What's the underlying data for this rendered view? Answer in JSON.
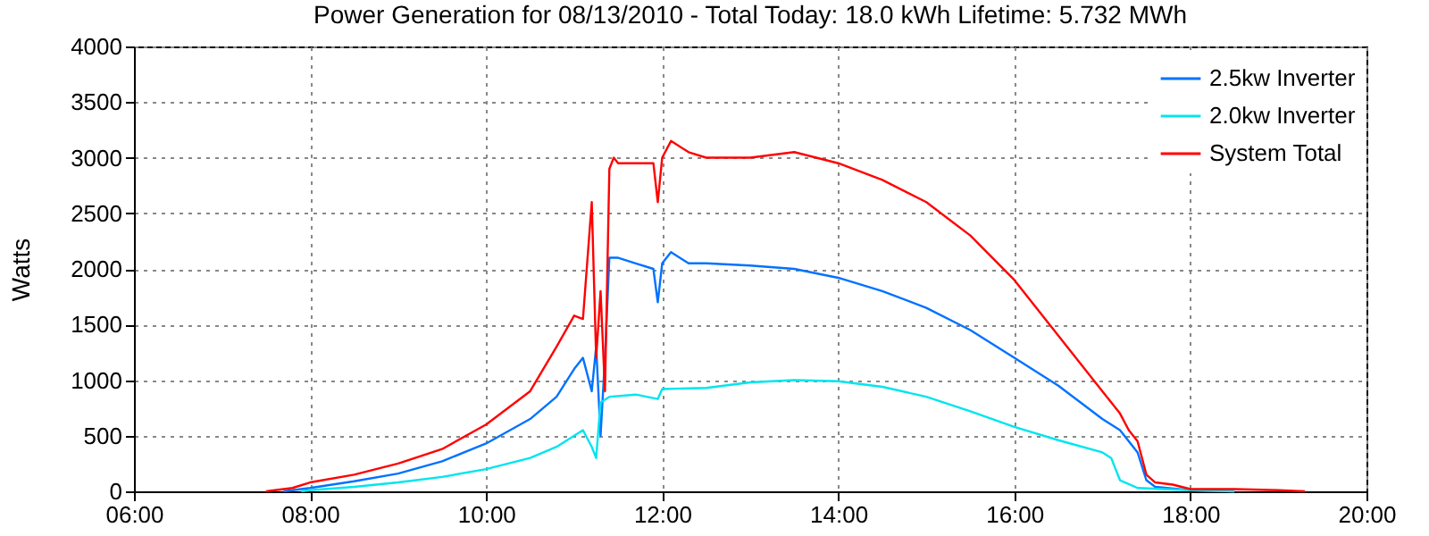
{
  "chart_data": {
    "type": "line",
    "title": "Power Generation for 08/13/2010 - Total Today: 18.0 kWh   Lifetime: 5.732 MWh",
    "ylabel": "Watts",
    "xlim": [
      6,
      20
    ],
    "xticks": [
      {
        "value": 6,
        "label": "06:00"
      },
      {
        "value": 8,
        "label": "08:00"
      },
      {
        "value": 10,
        "label": "10:00"
      },
      {
        "value": 12,
        "label": "12:00"
      },
      {
        "value": 14,
        "label": "14:00"
      },
      {
        "value": 16,
        "label": "16:00"
      },
      {
        "value": 18,
        "label": "18:00"
      },
      {
        "value": 20,
        "label": "20:00"
      }
    ],
    "ylim": [
      0,
      4000
    ],
    "yticks": [
      0,
      500,
      1000,
      1500,
      2000,
      2500,
      3000,
      3500,
      4000
    ],
    "grid": true,
    "legend": "top right",
    "marker": "none",
    "line_style": "solid",
    "series": [
      {
        "name": "2.5kw Inverter",
        "color": "#0072ff",
        "x": [
          7.7,
          8.0,
          8.5,
          9.0,
          9.5,
          10.0,
          10.5,
          10.8,
          11.0,
          11.1,
          11.2,
          11.25,
          11.3,
          11.35,
          11.4,
          11.5,
          11.7,
          11.9,
          11.95,
          12.0,
          12.1,
          12.3,
          12.5,
          13.0,
          13.5,
          14.0,
          14.5,
          15.0,
          15.5,
          16.0,
          16.5,
          17.0,
          17.2,
          17.4,
          17.5,
          17.6,
          18.0,
          18.5
        ],
        "values": [
          0,
          30,
          90,
          160,
          270,
          430,
          650,
          850,
          1100,
          1200,
          900,
          1300,
          500,
          1200,
          2100,
          2100,
          2050,
          2000,
          1700,
          2050,
          2150,
          2050,
          2050,
          2030,
          2000,
          1920,
          1800,
          1650,
          1450,
          1200,
          950,
          650,
          550,
          350,
          100,
          40,
          10,
          0
        ]
      },
      {
        "name": "2.0kw Inverter",
        "color": "#00e5ee",
        "x": [
          7.9,
          8.0,
          8.5,
          9.0,
          9.5,
          10.0,
          10.5,
          10.8,
          11.0,
          11.1,
          11.2,
          11.25,
          11.3,
          11.4,
          11.7,
          11.95,
          12.0,
          12.5,
          13.0,
          13.5,
          14.0,
          14.5,
          15.0,
          15.5,
          16.0,
          16.5,
          17.0,
          17.1,
          17.2,
          17.4,
          18.0,
          18.5
        ],
        "values": [
          0,
          10,
          40,
          80,
          130,
          200,
          300,
          400,
          500,
          550,
          400,
          300,
          800,
          850,
          870,
          830,
          920,
          930,
          980,
          1000,
          990,
          940,
          850,
          720,
          580,
          460,
          350,
          300,
          100,
          30,
          10,
          0
        ]
      },
      {
        "name": "System Total",
        "color": "#ff0000",
        "x": [
          7.5,
          7.8,
          8.0,
          8.5,
          9.0,
          9.5,
          10.0,
          10.5,
          10.8,
          11.0,
          11.1,
          11.2,
          11.25,
          11.3,
          11.35,
          11.4,
          11.45,
          11.5,
          11.7,
          11.9,
          11.95,
          12.0,
          12.1,
          12.3,
          12.5,
          13.0,
          13.5,
          14.0,
          14.5,
          15.0,
          15.5,
          16.0,
          16.5,
          17.0,
          17.2,
          17.3,
          17.4,
          17.5,
          17.6,
          17.8,
          18.0,
          18.5,
          19.0,
          19.3
        ],
        "values": [
          0,
          30,
          80,
          150,
          250,
          380,
          600,
          900,
          1300,
          1580,
          1550,
          2600,
          1200,
          1800,
          900,
          2900,
          3000,
          2950,
          2950,
          2950,
          2600,
          3000,
          3150,
          3050,
          3000,
          3000,
          3050,
          2950,
          2800,
          2600,
          2300,
          1900,
          1400,
          900,
          700,
          550,
          450,
          150,
          80,
          60,
          20,
          20,
          10,
          0
        ]
      }
    ]
  }
}
